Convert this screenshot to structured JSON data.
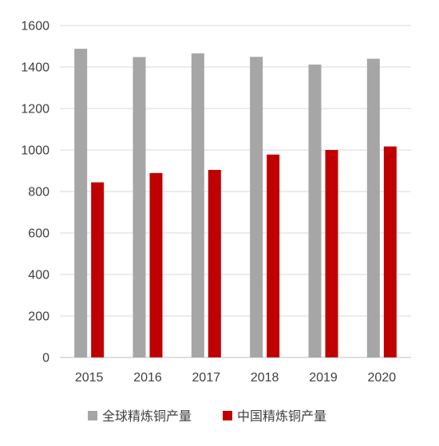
{
  "chart_data": {
    "type": "bar",
    "categories": [
      "2015",
      "2016",
      "2017",
      "2018",
      "2019",
      "2020"
    ],
    "series": [
      {
        "name": "全球精炼铜产量",
        "color": "#a6a6a6",
        "values": [
          1488,
          1448,
          1466,
          1449,
          1412,
          1440
        ]
      },
      {
        "name": "中国精炼铜产量",
        "color": "#c00000",
        "values": [
          844,
          889,
          904,
          978,
          1000,
          1017
        ]
      }
    ],
    "ylim": [
      0,
      1600
    ],
    "yticks": [
      "0",
      "200",
      "400",
      "600",
      "800",
      "1000",
      "1200",
      "1400",
      "1600"
    ],
    "grid": true,
    "legend_position": "bottom"
  }
}
